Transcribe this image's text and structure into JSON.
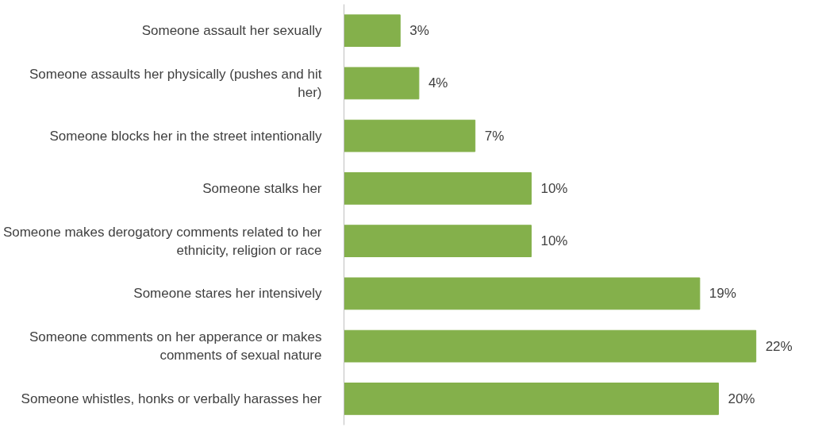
{
  "chart_data": {
    "type": "bar",
    "orientation": "horizontal",
    "categories": [
      "Someone assault her sexually",
      "Someone assaults her physically (pushes and hit her)",
      "Someone blocks her in the street intentionally",
      "Someone stalks her",
      "Someone makes derogatory comments related to her ethnicity, religion or race",
      "Someone stares her intensively",
      "Someone comments on her apperance or makes comments of sexual nature",
      "Someone whistles, honks or verbally harasses her"
    ],
    "values": [
      3,
      4,
      7,
      10,
      10,
      19,
      22,
      20
    ],
    "value_labels": [
      "3%",
      "4%",
      "7%",
      "10%",
      "10%",
      "19%",
      "22%",
      "20%"
    ],
    "color": "#84b04b",
    "grid": false
  }
}
